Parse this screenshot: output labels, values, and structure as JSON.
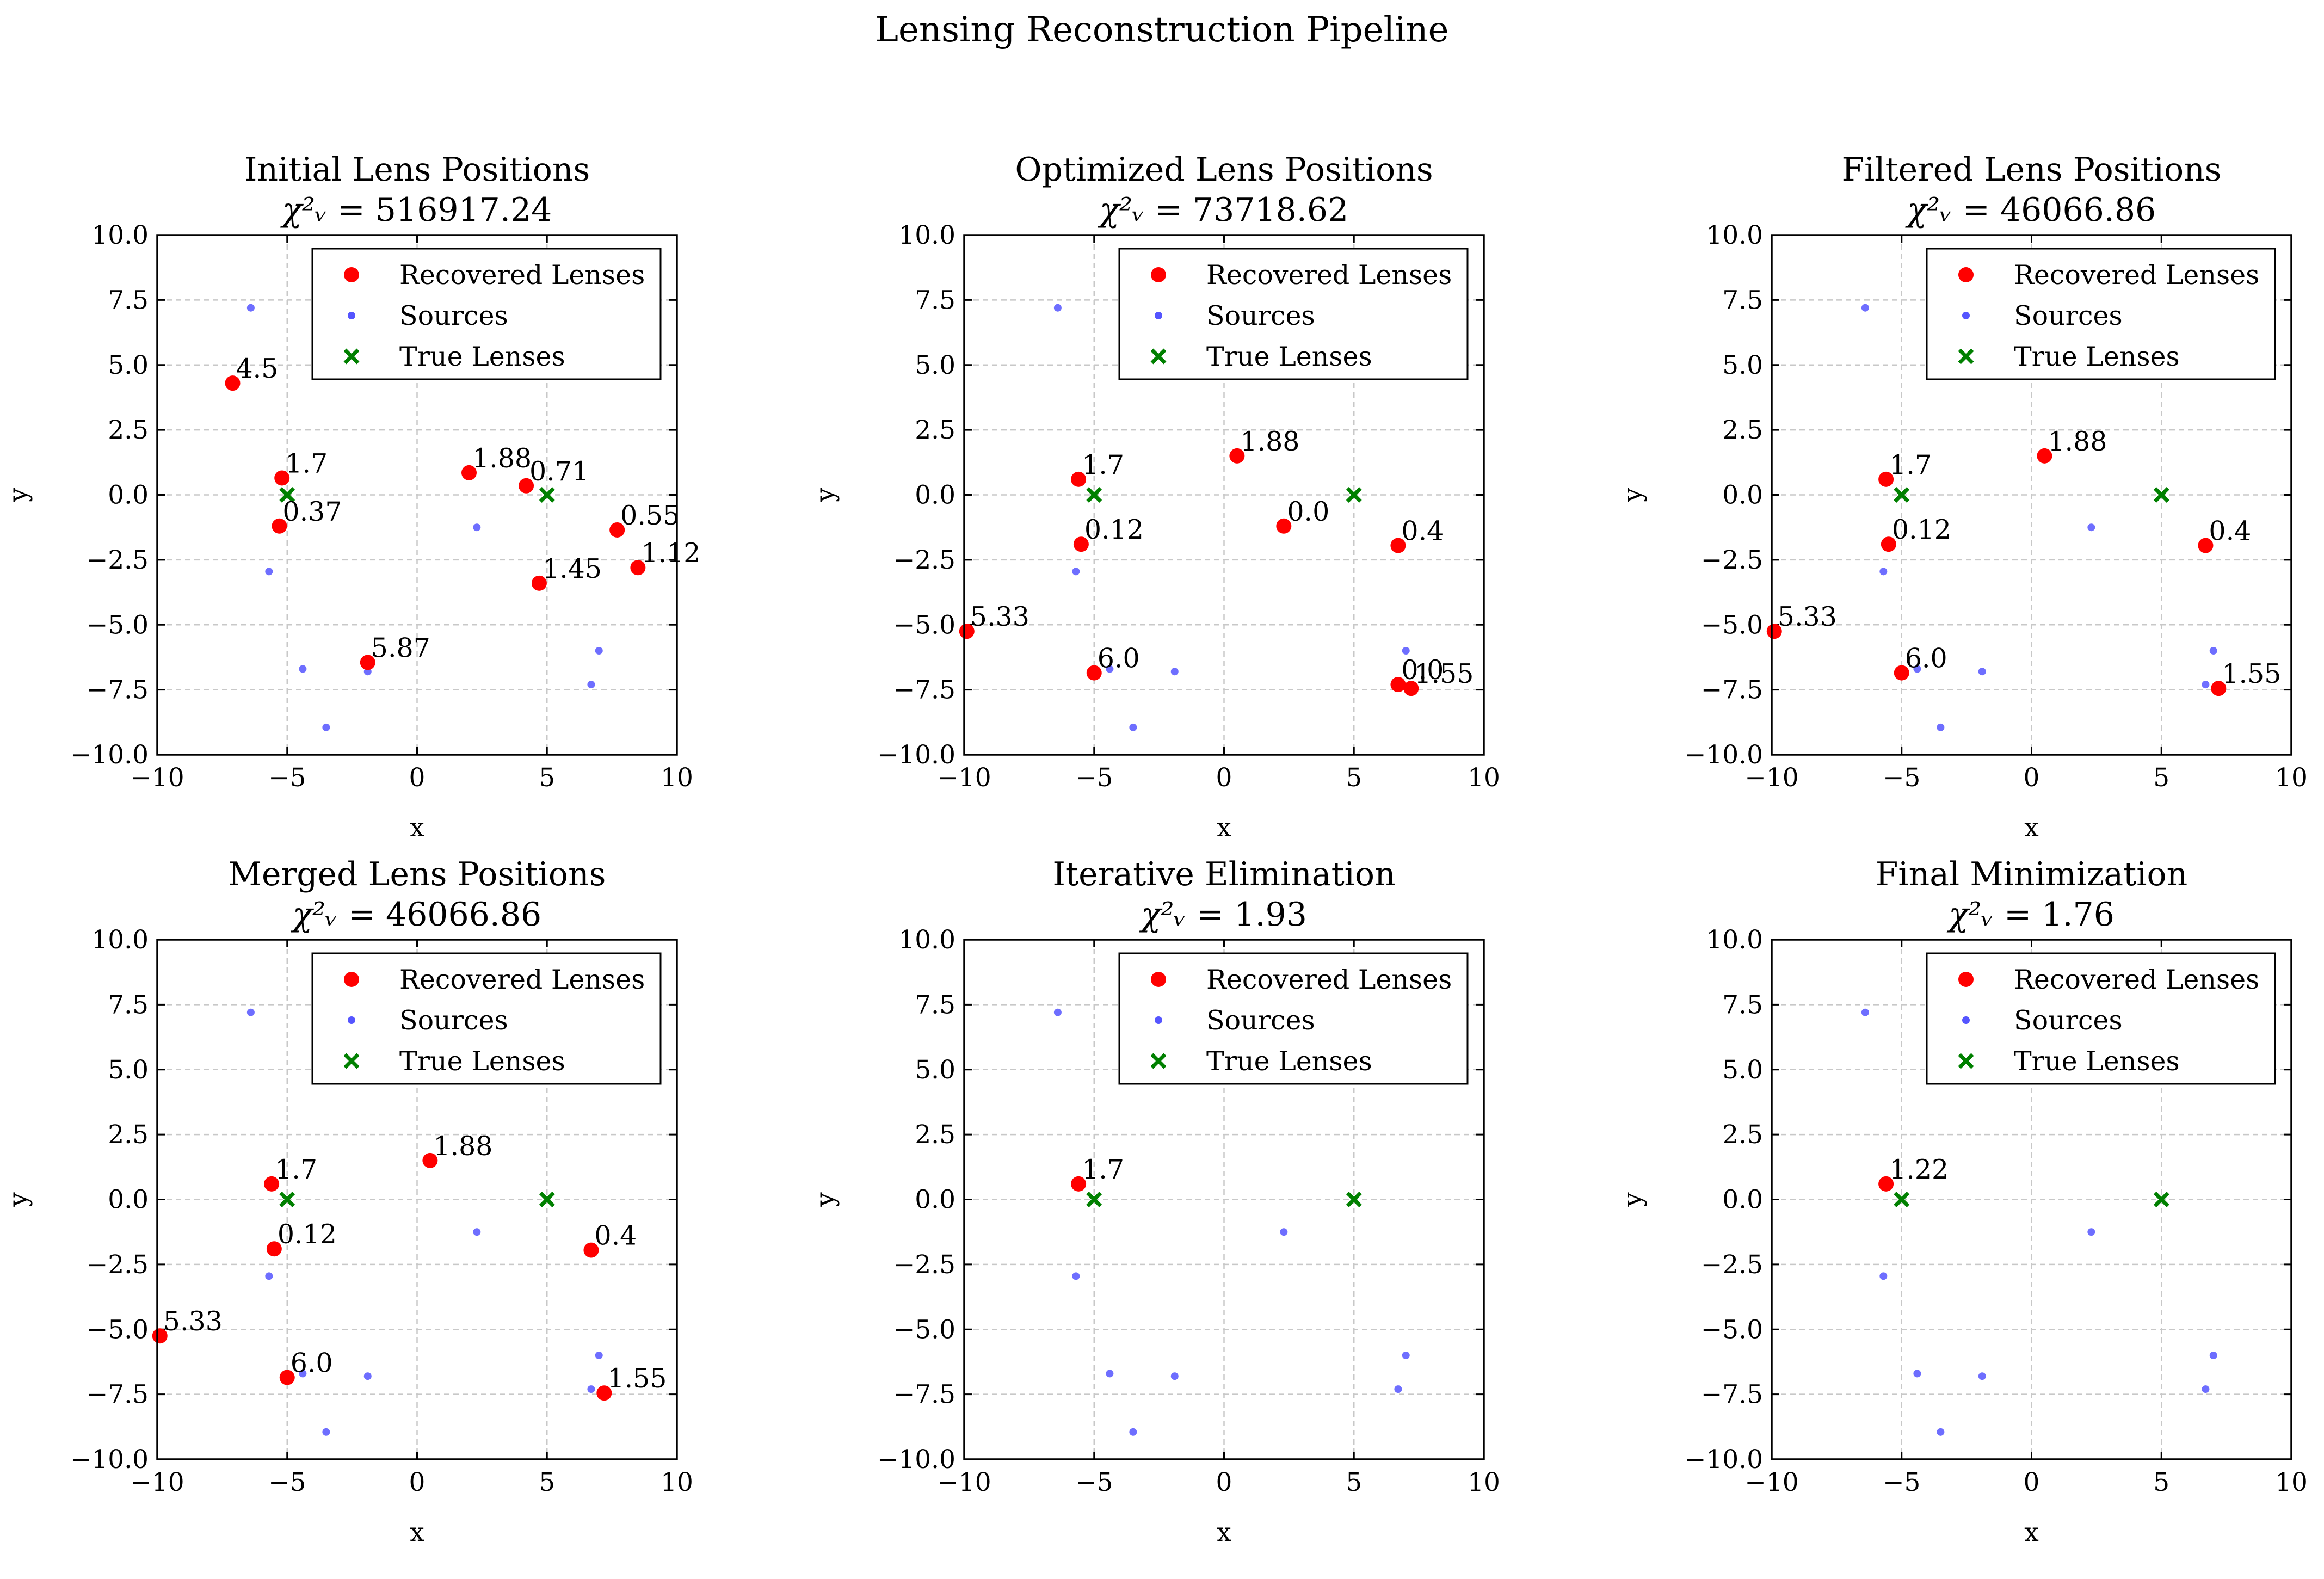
{
  "suptitle": "Lensing Reconstruction Pipeline",
  "legend": {
    "recovered": "Recovered Lenses",
    "sources": "Sources",
    "true": "True Lenses"
  },
  "colors": {
    "recovered": "#ff0000",
    "sources": "#5555ff",
    "true": "#008000",
    "grid": "#c8c8c8"
  },
  "chart_data": [
    {
      "type": "scatter",
      "title": "Initial Lens Positions",
      "chi2_label": "χ²ᵥ",
      "chi2_value": "516917.24",
      "xlabel": "x",
      "ylabel": "y",
      "xlim": [
        -10,
        10
      ],
      "ylim": [
        -10,
        10
      ],
      "xticks": [
        "−10",
        "−5",
        "0",
        "5",
        "10"
      ],
      "yticks": [
        "10.0",
        "7.5",
        "5.0",
        "2.5",
        "0.0",
        "−2.5",
        "−5.0",
        "−7.5",
        "−10.0"
      ],
      "grid": true,
      "legend_position": "top-right",
      "recovered": [
        {
          "x": -7.1,
          "y": 4.3,
          "label": "4.5"
        },
        {
          "x": -5.2,
          "y": 0.65,
          "label": "1.7"
        },
        {
          "x": -5.3,
          "y": -1.2,
          "label": "0.37"
        },
        {
          "x": 2.0,
          "y": 0.85,
          "label": "1.88"
        },
        {
          "x": 4.2,
          "y": 0.35,
          "label": "0.71"
        },
        {
          "x": 7.7,
          "y": -1.35,
          "label": "0.55"
        },
        {
          "x": 8.5,
          "y": -2.8,
          "label": "1.12"
        },
        {
          "x": 4.7,
          "y": -3.4,
          "label": "1.45"
        },
        {
          "x": -1.9,
          "y": -6.45,
          "label": "5.87"
        }
      ],
      "sources": [
        {
          "x": -6.4,
          "y": 7.2
        },
        {
          "x": -5.7,
          "y": -2.95
        },
        {
          "x": -4.4,
          "y": -6.7
        },
        {
          "x": -3.5,
          "y": -8.95
        },
        {
          "x": -1.9,
          "y": -6.8
        },
        {
          "x": 2.3,
          "y": -1.25
        },
        {
          "x": 7.0,
          "y": -6.0
        },
        {
          "x": 6.7,
          "y": -7.3
        }
      ],
      "true_lenses": [
        {
          "x": -5.0,
          "y": 0.0
        },
        {
          "x": 5.0,
          "y": 0.0
        }
      ]
    },
    {
      "type": "scatter",
      "title": "Optimized Lens Positions",
      "chi2_label": "χ²ᵥ",
      "chi2_value": "73718.62",
      "xlabel": "x",
      "ylabel": "y",
      "xlim": [
        -10,
        10
      ],
      "ylim": [
        -10,
        10
      ],
      "xticks": [
        "−10",
        "−5",
        "0",
        "5",
        "10"
      ],
      "yticks": [
        "10.0",
        "7.5",
        "5.0",
        "2.5",
        "0.0",
        "−2.5",
        "−5.0",
        "−7.5",
        "−10.0"
      ],
      "grid": true,
      "legend_position": "top-right",
      "recovered": [
        {
          "x": -5.6,
          "y": 0.6,
          "label": "1.7"
        },
        {
          "x": -5.5,
          "y": -1.9,
          "label": "0.12"
        },
        {
          "x": 0.5,
          "y": 1.5,
          "label": "1.88"
        },
        {
          "x": 2.3,
          "y": -1.2,
          "label": "0.0"
        },
        {
          "x": 6.7,
          "y": -1.95,
          "label": "0.4"
        },
        {
          "x": -9.9,
          "y": -5.25,
          "label": "5.33"
        },
        {
          "x": -5.0,
          "y": -6.85,
          "label": "6.0"
        },
        {
          "x": 6.7,
          "y": -7.3,
          "label": "0.0"
        },
        {
          "x": 7.2,
          "y": -7.45,
          "label": "1.55"
        }
      ],
      "sources": [
        {
          "x": -6.4,
          "y": 7.2
        },
        {
          "x": -5.7,
          "y": -2.95
        },
        {
          "x": -4.4,
          "y": -6.7
        },
        {
          "x": -3.5,
          "y": -8.95
        },
        {
          "x": -1.9,
          "y": -6.8
        },
        {
          "x": 2.3,
          "y": -1.25
        },
        {
          "x": 7.0,
          "y": -6.0
        },
        {
          "x": 6.7,
          "y": -7.3
        }
      ],
      "true_lenses": [
        {
          "x": -5.0,
          "y": 0.0
        },
        {
          "x": 5.0,
          "y": 0.0
        }
      ]
    },
    {
      "type": "scatter",
      "title": "Filtered Lens Positions",
      "chi2_label": "χ²ᵥ",
      "chi2_value": "46066.86",
      "xlabel": "x",
      "ylabel": "y",
      "xlim": [
        -10,
        10
      ],
      "ylim": [
        -10,
        10
      ],
      "xticks": [
        "−10",
        "−5",
        "0",
        "5",
        "10"
      ],
      "yticks": [
        "10.0",
        "7.5",
        "5.0",
        "2.5",
        "0.0",
        "−2.5",
        "−5.0",
        "−7.5",
        "−10.0"
      ],
      "grid": true,
      "legend_position": "top-right",
      "recovered": [
        {
          "x": -5.6,
          "y": 0.6,
          "label": "1.7"
        },
        {
          "x": -5.5,
          "y": -1.9,
          "label": "0.12"
        },
        {
          "x": 0.5,
          "y": 1.5,
          "label": "1.88"
        },
        {
          "x": 6.7,
          "y": -1.95,
          "label": "0.4"
        },
        {
          "x": -9.9,
          "y": -5.25,
          "label": "5.33"
        },
        {
          "x": -5.0,
          "y": -6.85,
          "label": "6.0"
        },
        {
          "x": 7.2,
          "y": -7.45,
          "label": "1.55"
        }
      ],
      "sources": [
        {
          "x": -6.4,
          "y": 7.2
        },
        {
          "x": -5.7,
          "y": -2.95
        },
        {
          "x": -4.4,
          "y": -6.7
        },
        {
          "x": -3.5,
          "y": -8.95
        },
        {
          "x": -1.9,
          "y": -6.8
        },
        {
          "x": 2.3,
          "y": -1.25
        },
        {
          "x": 7.0,
          "y": -6.0
        },
        {
          "x": 6.7,
          "y": -7.3
        }
      ],
      "true_lenses": [
        {
          "x": -5.0,
          "y": 0.0
        },
        {
          "x": 5.0,
          "y": 0.0
        }
      ]
    },
    {
      "type": "scatter",
      "title": "Merged Lens Positions",
      "chi2_label": "χ²ᵥ",
      "chi2_value": "46066.86",
      "xlabel": "x",
      "ylabel": "y",
      "xlim": [
        -10,
        10
      ],
      "ylim": [
        -10,
        10
      ],
      "xticks": [
        "−10",
        "−5",
        "0",
        "5",
        "10"
      ],
      "yticks": [
        "10.0",
        "7.5",
        "5.0",
        "2.5",
        "0.0",
        "−2.5",
        "−5.0",
        "−7.5",
        "−10.0"
      ],
      "grid": true,
      "legend_position": "top-right",
      "recovered": [
        {
          "x": -5.6,
          "y": 0.6,
          "label": "1.7"
        },
        {
          "x": -5.5,
          "y": -1.9,
          "label": "0.12"
        },
        {
          "x": 0.5,
          "y": 1.5,
          "label": "1.88"
        },
        {
          "x": 6.7,
          "y": -1.95,
          "label": "0.4"
        },
        {
          "x": -9.9,
          "y": -5.25,
          "label": "5.33"
        },
        {
          "x": -5.0,
          "y": -6.85,
          "label": "6.0"
        },
        {
          "x": 7.2,
          "y": -7.45,
          "label": "1.55"
        }
      ],
      "sources": [
        {
          "x": -6.4,
          "y": 7.2
        },
        {
          "x": -5.7,
          "y": -2.95
        },
        {
          "x": -4.4,
          "y": -6.7
        },
        {
          "x": -3.5,
          "y": -8.95
        },
        {
          "x": -1.9,
          "y": -6.8
        },
        {
          "x": 2.3,
          "y": -1.25
        },
        {
          "x": 7.0,
          "y": -6.0
        },
        {
          "x": 6.7,
          "y": -7.3
        }
      ],
      "true_lenses": [
        {
          "x": -5.0,
          "y": 0.0
        },
        {
          "x": 5.0,
          "y": 0.0
        }
      ]
    },
    {
      "type": "scatter",
      "title": "Iterative Elimination",
      "chi2_label": "χ²ᵥ",
      "chi2_value": "1.93",
      "xlabel": "x",
      "ylabel": "y",
      "xlim": [
        -10,
        10
      ],
      "ylim": [
        -10,
        10
      ],
      "xticks": [
        "−10",
        "−5",
        "0",
        "5",
        "10"
      ],
      "yticks": [
        "10.0",
        "7.5",
        "5.0",
        "2.5",
        "0.0",
        "−2.5",
        "−5.0",
        "−7.5",
        "−10.0"
      ],
      "grid": true,
      "legend_position": "top-right",
      "recovered": [
        {
          "x": -5.6,
          "y": 0.6,
          "label": "1.7"
        }
      ],
      "sources": [
        {
          "x": -6.4,
          "y": 7.2
        },
        {
          "x": -5.7,
          "y": -2.95
        },
        {
          "x": -4.4,
          "y": -6.7
        },
        {
          "x": -3.5,
          "y": -8.95
        },
        {
          "x": -1.9,
          "y": -6.8
        },
        {
          "x": 2.3,
          "y": -1.25
        },
        {
          "x": 7.0,
          "y": -6.0
        },
        {
          "x": 6.7,
          "y": -7.3
        }
      ],
      "true_lenses": [
        {
          "x": -5.0,
          "y": 0.0
        },
        {
          "x": 5.0,
          "y": 0.0
        }
      ]
    },
    {
      "type": "scatter",
      "title": "Final Minimization",
      "chi2_label": "χ²ᵥ",
      "chi2_value": "1.76",
      "xlabel": "x",
      "ylabel": "y",
      "xlim": [
        -10,
        10
      ],
      "ylim": [
        -10,
        10
      ],
      "xticks": [
        "−10",
        "−5",
        "0",
        "5",
        "10"
      ],
      "yticks": [
        "10.0",
        "7.5",
        "5.0",
        "2.5",
        "0.0",
        "−2.5",
        "−5.0",
        "−7.5",
        "−10.0"
      ],
      "grid": true,
      "legend_position": "top-right",
      "recovered": [
        {
          "x": -5.6,
          "y": 0.6,
          "label": "1.22"
        }
      ],
      "sources": [
        {
          "x": -6.4,
          "y": 7.2
        },
        {
          "x": -5.7,
          "y": -2.95
        },
        {
          "x": -4.4,
          "y": -6.7
        },
        {
          "x": -3.5,
          "y": -8.95
        },
        {
          "x": -1.9,
          "y": -6.8
        },
        {
          "x": 2.3,
          "y": -1.25
        },
        {
          "x": 7.0,
          "y": -6.0
        },
        {
          "x": 6.7,
          "y": -7.3
        }
      ],
      "true_lenses": [
        {
          "x": -5.0,
          "y": 0.0
        },
        {
          "x": 5.0,
          "y": 0.0
        }
      ]
    }
  ]
}
